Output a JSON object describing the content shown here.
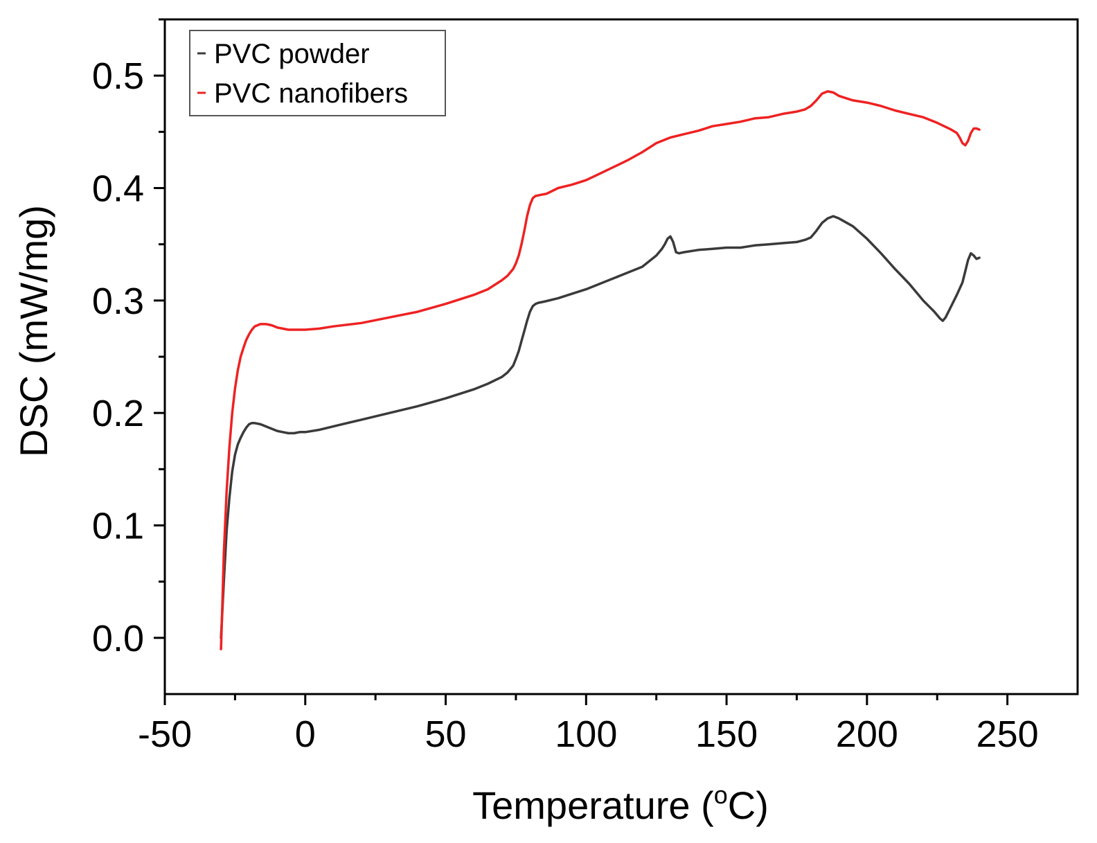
{
  "chart_data": {
    "type": "line",
    "xlabel": "Temperature (",
    "xlabel_sup": "o",
    "xlabel_end": "C)",
    "ylabel": "DSC (mW/mg)",
    "xlim": [
      -50,
      275
    ],
    "ylim": [
      -0.05,
      0.55
    ],
    "x_ticks": [
      -50,
      0,
      50,
      100,
      150,
      200,
      250
    ],
    "x_tick_labels": [
      "-50",
      "0",
      "50",
      "100",
      "150",
      "200",
      "250"
    ],
    "y_ticks": [
      0.0,
      0.1,
      0.2,
      0.3,
      0.4,
      0.5
    ],
    "y_tick_labels": [
      "0.0",
      "0.1",
      "0.2",
      "0.3",
      "0.4",
      "0.5"
    ],
    "grid": false,
    "legend_position": "top-left",
    "colors": {
      "powder": "#3a3a3a",
      "nanofibers": "#ee2222"
    },
    "series": [
      {
        "name": "PVC powder",
        "legend_label": "PVC powder",
        "color": "#3a3a3a",
        "x": [
          -30,
          -29,
          -28,
          -27,
          -26,
          -25,
          -24,
          -23,
          -22,
          -21,
          -20,
          -19,
          -18,
          -16,
          -14,
          -12,
          -10,
          -8,
          -6,
          -4,
          -2,
          0,
          5,
          10,
          20,
          30,
          40,
          50,
          55,
          60,
          65,
          70,
          72,
          74,
          75,
          76,
          77,
          78,
          79,
          80,
          81,
          82,
          83,
          85,
          90,
          95,
          100,
          105,
          110,
          115,
          120,
          125,
          127,
          128,
          129,
          130,
          131,
          132,
          133,
          135,
          140,
          145,
          150,
          155,
          160,
          165,
          170,
          175,
          178,
          180,
          182,
          184,
          186,
          188,
          190,
          195,
          200,
          205,
          210,
          215,
          220,
          224,
          226,
          227,
          228,
          230,
          232,
          234,
          235,
          236,
          237,
          238,
          239,
          240
        ],
        "values": [
          0.0,
          0.05,
          0.095,
          0.125,
          0.148,
          0.163,
          0.172,
          0.178,
          0.183,
          0.187,
          0.19,
          0.191,
          0.191,
          0.19,
          0.188,
          0.186,
          0.184,
          0.183,
          0.182,
          0.182,
          0.183,
          0.183,
          0.185,
          0.188,
          0.194,
          0.2,
          0.206,
          0.213,
          0.217,
          0.221,
          0.226,
          0.232,
          0.236,
          0.242,
          0.248,
          0.255,
          0.264,
          0.273,
          0.282,
          0.29,
          0.295,
          0.297,
          0.298,
          0.299,
          0.302,
          0.306,
          0.31,
          0.315,
          0.32,
          0.325,
          0.33,
          0.34,
          0.346,
          0.35,
          0.355,
          0.357,
          0.352,
          0.343,
          0.342,
          0.343,
          0.345,
          0.346,
          0.347,
          0.347,
          0.349,
          0.35,
          0.351,
          0.352,
          0.354,
          0.356,
          0.362,
          0.369,
          0.373,
          0.375,
          0.373,
          0.366,
          0.355,
          0.342,
          0.328,
          0.315,
          0.3,
          0.29,
          0.284,
          0.282,
          0.285,
          0.295,
          0.305,
          0.316,
          0.326,
          0.336,
          0.342,
          0.34,
          0.337,
          0.338
        ]
      },
      {
        "name": "PVC nanofibers",
        "legend_label": "PVC nanofibers",
        "color": "#ee2222",
        "x": [
          -30,
          -29.5,
          -29,
          -28,
          -27,
          -26,
          -25,
          -24,
          -23,
          -22,
          -21,
          -20,
          -19,
          -18,
          -16,
          -14,
          -12,
          -10,
          -8,
          -6,
          -4,
          -2,
          0,
          5,
          10,
          20,
          30,
          40,
          50,
          55,
          60,
          65,
          70,
          72,
          74,
          75,
          76,
          77,
          78,
          79,
          80,
          81,
          82,
          84,
          86,
          90,
          95,
          100,
          105,
          110,
          115,
          120,
          125,
          130,
          135,
          140,
          145,
          150,
          155,
          160,
          165,
          170,
          175,
          178,
          180,
          182,
          184,
          186,
          188,
          190,
          195,
          200,
          205,
          210,
          215,
          220,
          225,
          230,
          232,
          233,
          234,
          235,
          236,
          237,
          238,
          239,
          240
        ],
        "values": [
          -0.01,
          0.03,
          0.075,
          0.13,
          0.17,
          0.2,
          0.222,
          0.238,
          0.25,
          0.258,
          0.265,
          0.27,
          0.274,
          0.277,
          0.279,
          0.279,
          0.278,
          0.276,
          0.275,
          0.274,
          0.274,
          0.274,
          0.274,
          0.275,
          0.277,
          0.28,
          0.285,
          0.29,
          0.297,
          0.301,
          0.305,
          0.31,
          0.318,
          0.322,
          0.328,
          0.333,
          0.34,
          0.35,
          0.362,
          0.375,
          0.385,
          0.391,
          0.393,
          0.394,
          0.395,
          0.4,
          0.403,
          0.407,
          0.413,
          0.419,
          0.425,
          0.432,
          0.44,
          0.445,
          0.448,
          0.451,
          0.455,
          0.457,
          0.459,
          0.462,
          0.463,
          0.466,
          0.468,
          0.47,
          0.473,
          0.478,
          0.484,
          0.486,
          0.485,
          0.482,
          0.478,
          0.476,
          0.473,
          0.469,
          0.466,
          0.463,
          0.458,
          0.452,
          0.449,
          0.445,
          0.44,
          0.438,
          0.442,
          0.449,
          0.453,
          0.453,
          0.452
        ]
      }
    ]
  }
}
